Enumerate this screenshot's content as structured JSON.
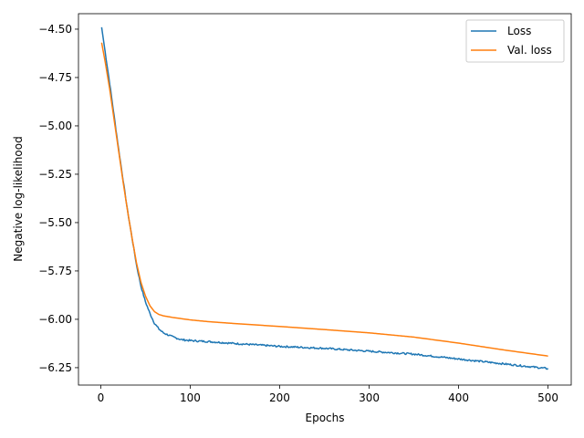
{
  "chart_data": {
    "type": "line",
    "title": "",
    "xlabel": "Epochs",
    "ylabel": "Negative log-likelihood",
    "xlim": [
      -24.9,
      525.9
    ],
    "ylim": [
      -6.34,
      -4.42
    ],
    "xticks": [
      0,
      100,
      200,
      300,
      400,
      500
    ],
    "xtick_labels": [
      "0",
      "100",
      "200",
      "300",
      "400",
      "500"
    ],
    "yticks": [
      -4.5,
      -4.75,
      -5.0,
      -5.25,
      -5.5,
      -5.75,
      -6.0,
      -6.25
    ],
    "ytick_labels": [
      "−4.50",
      "−4.75",
      "−5.00",
      "−5.25",
      "−5.50",
      "−5.75",
      "−6.00",
      "−6.25"
    ],
    "grid": false,
    "legend_position": "top-right",
    "series": [
      {
        "name": "Loss",
        "color": "#1f77b4",
        "noise": true,
        "points": [
          [
            1,
            -4.49
          ],
          [
            5,
            -4.62
          ],
          [
            10,
            -4.78
          ],
          [
            15,
            -4.95
          ],
          [
            20,
            -5.12
          ],
          [
            25,
            -5.28
          ],
          [
            30,
            -5.44
          ],
          [
            35,
            -5.58
          ],
          [
            40,
            -5.72
          ],
          [
            45,
            -5.83
          ],
          [
            50,
            -5.91
          ],
          [
            55,
            -5.97
          ],
          [
            60,
            -6.02
          ],
          [
            65,
            -6.05
          ],
          [
            70,
            -6.07
          ],
          [
            80,
            -6.09
          ],
          [
            90,
            -6.105
          ],
          [
            100,
            -6.11
          ],
          [
            120,
            -6.115
          ],
          [
            150,
            -6.125
          ],
          [
            200,
            -6.14
          ],
          [
            250,
            -6.15
          ],
          [
            300,
            -6.165
          ],
          [
            350,
            -6.18
          ],
          [
            400,
            -6.205
          ],
          [
            450,
            -6.23
          ],
          [
            500,
            -6.255
          ]
        ]
      },
      {
        "name": "Val. loss",
        "color": "#ff7f0e",
        "noise": false,
        "points": [
          [
            1,
            -4.57
          ],
          [
            5,
            -4.67
          ],
          [
            10,
            -4.81
          ],
          [
            15,
            -4.97
          ],
          [
            20,
            -5.13
          ],
          [
            25,
            -5.29
          ],
          [
            30,
            -5.44
          ],
          [
            35,
            -5.58
          ],
          [
            40,
            -5.71
          ],
          [
            45,
            -5.81
          ],
          [
            50,
            -5.88
          ],
          [
            55,
            -5.93
          ],
          [
            60,
            -5.96
          ],
          [
            65,
            -5.975
          ],
          [
            70,
            -5.982
          ],
          [
            80,
            -5.99
          ],
          [
            100,
            -6.003
          ],
          [
            120,
            -6.012
          ],
          [
            150,
            -6.022
          ],
          [
            200,
            -6.037
          ],
          [
            250,
            -6.053
          ],
          [
            300,
            -6.07
          ],
          [
            350,
            -6.092
          ],
          [
            400,
            -6.123
          ],
          [
            450,
            -6.158
          ],
          [
            500,
            -6.19
          ]
        ]
      }
    ]
  }
}
